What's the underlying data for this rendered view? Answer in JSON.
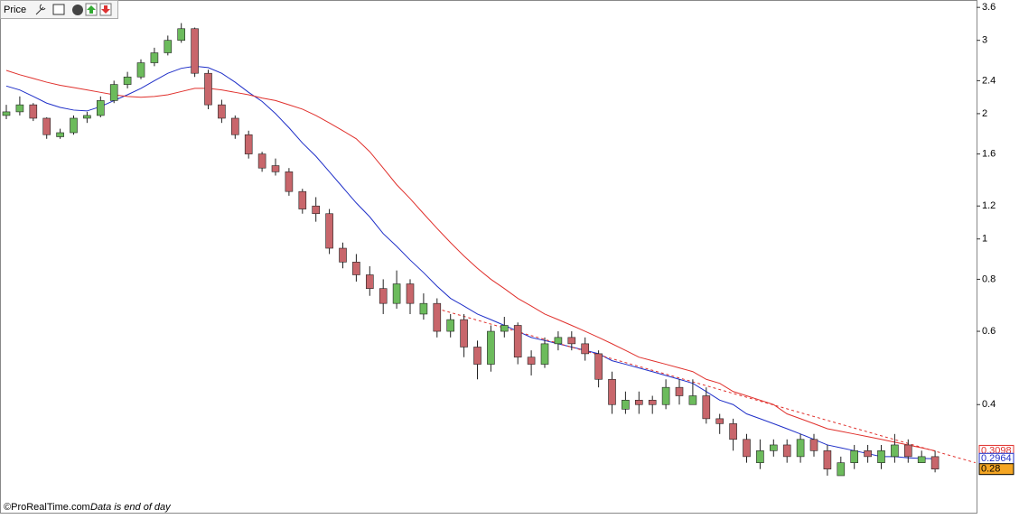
{
  "chart_data": {
    "type": "candlestick",
    "title": "Price",
    "footer_brand": "©ProRealTime.com",
    "footer_note": "Data is end of day",
    "log_scale": true,
    "ylim": [
      0.22,
      3.75
    ],
    "yticks": [
      3.6,
      3,
      2.4,
      2,
      1.6,
      1.2,
      1,
      0.8,
      0.6,
      0.4
    ],
    "up_color": "#6cbb5c",
    "down_color": "#c8666b",
    "open": [
      1.98,
      2.02,
      2.1,
      1.95,
      1.76,
      1.8,
      1.95,
      1.98,
      2.15,
      2.35,
      2.45,
      2.65,
      2.8,
      3.0,
      3.2,
      2.5,
      2.1,
      1.95,
      1.78,
      1.6,
      1.5,
      1.45,
      1.3,
      1.2,
      1.15,
      0.95,
      0.88,
      0.82,
      0.76,
      0.7,
      0.78,
      0.66,
      0.7,
      0.6,
      0.64,
      0.55,
      0.5,
      0.6,
      0.62,
      0.52,
      0.5,
      0.56,
      0.58,
      0.56,
      0.53,
      0.46,
      0.39,
      0.41,
      0.41,
      0.4,
      0.44,
      0.4,
      0.42,
      0.37,
      0.36,
      0.33,
      0.29,
      0.31,
      0.32,
      0.3,
      0.33,
      0.31,
      0.27,
      0.29,
      0.31,
      0.29,
      0.3,
      0.32,
      0.29,
      0.3
    ],
    "high": [
      2.1,
      2.2,
      2.12,
      1.96,
      1.84,
      1.98,
      2.02,
      2.2,
      2.4,
      2.52,
      2.7,
      2.88,
      3.08,
      3.3,
      3.22,
      2.55,
      2.16,
      1.98,
      1.82,
      1.62,
      1.56,
      1.48,
      1.32,
      1.26,
      1.18,
      0.98,
      0.92,
      0.86,
      0.8,
      0.84,
      0.8,
      0.74,
      0.72,
      0.66,
      0.66,
      0.57,
      0.62,
      0.65,
      0.63,
      0.54,
      0.58,
      0.6,
      0.6,
      0.58,
      0.54,
      0.48,
      0.43,
      0.43,
      0.42,
      0.46,
      0.46,
      0.46,
      0.44,
      0.38,
      0.37,
      0.34,
      0.33,
      0.33,
      0.33,
      0.34,
      0.34,
      0.32,
      0.3,
      0.32,
      0.32,
      0.32,
      0.34,
      0.33,
      0.31,
      0.31
    ],
    "low": [
      1.94,
      1.98,
      1.92,
      1.74,
      1.74,
      1.78,
      1.9,
      1.96,
      2.12,
      2.3,
      2.42,
      2.6,
      2.76,
      2.96,
      2.45,
      2.05,
      1.9,
      1.74,
      1.56,
      1.45,
      1.42,
      1.27,
      1.15,
      1.1,
      0.92,
      0.85,
      0.79,
      0.73,
      0.66,
      0.68,
      0.66,
      0.64,
      0.58,
      0.58,
      0.52,
      0.46,
      0.48,
      0.58,
      0.5,
      0.47,
      0.49,
      0.54,
      0.54,
      0.51,
      0.44,
      0.38,
      0.38,
      0.38,
      0.38,
      0.39,
      0.4,
      0.4,
      0.36,
      0.34,
      0.31,
      0.29,
      0.28,
      0.3,
      0.29,
      0.29,
      0.3,
      0.27,
      0.27,
      0.28,
      0.29,
      0.28,
      0.29,
      0.29,
      0.29,
      0.275
    ],
    "close": [
      2.02,
      2.1,
      1.95,
      1.78,
      1.8,
      1.95,
      1.98,
      2.15,
      2.35,
      2.45,
      2.65,
      2.8,
      3.0,
      3.2,
      2.5,
      2.1,
      1.95,
      1.78,
      1.6,
      1.48,
      1.45,
      1.3,
      1.18,
      1.15,
      0.95,
      0.88,
      0.82,
      0.76,
      0.7,
      0.78,
      0.7,
      0.7,
      0.6,
      0.64,
      0.55,
      0.5,
      0.6,
      0.62,
      0.52,
      0.5,
      0.56,
      0.58,
      0.56,
      0.53,
      0.46,
      0.4,
      0.41,
      0.4,
      0.4,
      0.44,
      0.42,
      0.42,
      0.37,
      0.36,
      0.33,
      0.3,
      0.31,
      0.32,
      0.3,
      0.33,
      0.31,
      0.28,
      0.29,
      0.31,
      0.3,
      0.31,
      0.32,
      0.3,
      0.3,
      0.28
    ],
    "close_label_color": "#f5a623",
    "lines": [
      {
        "color": "#1f2fc8",
        "values": [
          2.33,
          2.28,
          2.2,
          2.12,
          2.07,
          2.04,
          2.03,
          2.08,
          2.15,
          2.22,
          2.3,
          2.4,
          2.5,
          2.57,
          2.6,
          2.58,
          2.5,
          2.38,
          2.25,
          2.14,
          2.0,
          1.85,
          1.7,
          1.58,
          1.45,
          1.33,
          1.22,
          1.13,
          1.03,
          0.96,
          0.89,
          0.83,
          0.77,
          0.72,
          0.69,
          0.66,
          0.64,
          0.62,
          0.6,
          0.58,
          0.57,
          0.56,
          0.55,
          0.54,
          0.53,
          0.51,
          0.5,
          0.49,
          0.48,
          0.47,
          0.46,
          0.45,
          0.43,
          0.41,
          0.4,
          0.38,
          0.37,
          0.36,
          0.35,
          0.34,
          0.33,
          0.32,
          0.315,
          0.31,
          0.305,
          0.3,
          0.3,
          0.298,
          0.297,
          0.2964
        ]
      },
      {
        "color": "#e0302c",
        "values": [
          2.54,
          2.48,
          2.43,
          2.38,
          2.34,
          2.31,
          2.28,
          2.25,
          2.22,
          2.2,
          2.19,
          2.2,
          2.22,
          2.26,
          2.3,
          2.3,
          2.28,
          2.25,
          2.22,
          2.18,
          2.15,
          2.1,
          2.05,
          1.98,
          1.9,
          1.82,
          1.74,
          1.62,
          1.48,
          1.35,
          1.25,
          1.15,
          1.06,
          0.98,
          0.91,
          0.85,
          0.8,
          0.76,
          0.72,
          0.69,
          0.66,
          0.64,
          0.62,
          0.6,
          0.58,
          0.56,
          0.54,
          0.52,
          0.51,
          0.5,
          0.49,
          0.48,
          0.46,
          0.45,
          0.43,
          0.42,
          0.41,
          0.4,
          0.38,
          0.37,
          0.36,
          0.35,
          0.345,
          0.34,
          0.335,
          0.33,
          0.325,
          0.32,
          0.315,
          0.3098
        ]
      }
    ],
    "trendline": {
      "color": "#e0302c",
      "x": [
        32,
        72
      ],
      "values": [
        0.68,
        0.29
      ]
    }
  }
}
